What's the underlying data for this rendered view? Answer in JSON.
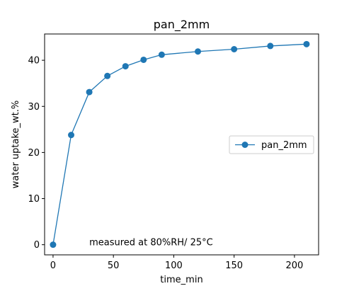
{
  "chart_data": {
    "type": "line",
    "title": "pan_2mm",
    "xlabel": "time_min",
    "ylabel": "water uptake_wt.%",
    "xlim": [
      -7,
      220
    ],
    "ylim": [
      -2.2,
      45.7
    ],
    "x_ticks": [
      0,
      50,
      100,
      150,
      200
    ],
    "y_ticks": [
      0,
      10,
      20,
      30,
      40
    ],
    "grid": false,
    "legend_position": "center-right",
    "series": [
      {
        "name": "pan_2mm",
        "color": "#1f77b4",
        "marker": "circle",
        "x": [
          0,
          15,
          30,
          45,
          60,
          75,
          90,
          120,
          150,
          180,
          210
        ],
        "y": [
          0,
          23.8,
          33.1,
          36.6,
          38.7,
          40.1,
          41.2,
          41.9,
          42.4,
          43.1,
          43.5
        ]
      }
    ],
    "annotations": [
      {
        "text": "measured at 80%RH/ 25°C",
        "x": 30,
        "y": 0
      }
    ]
  }
}
